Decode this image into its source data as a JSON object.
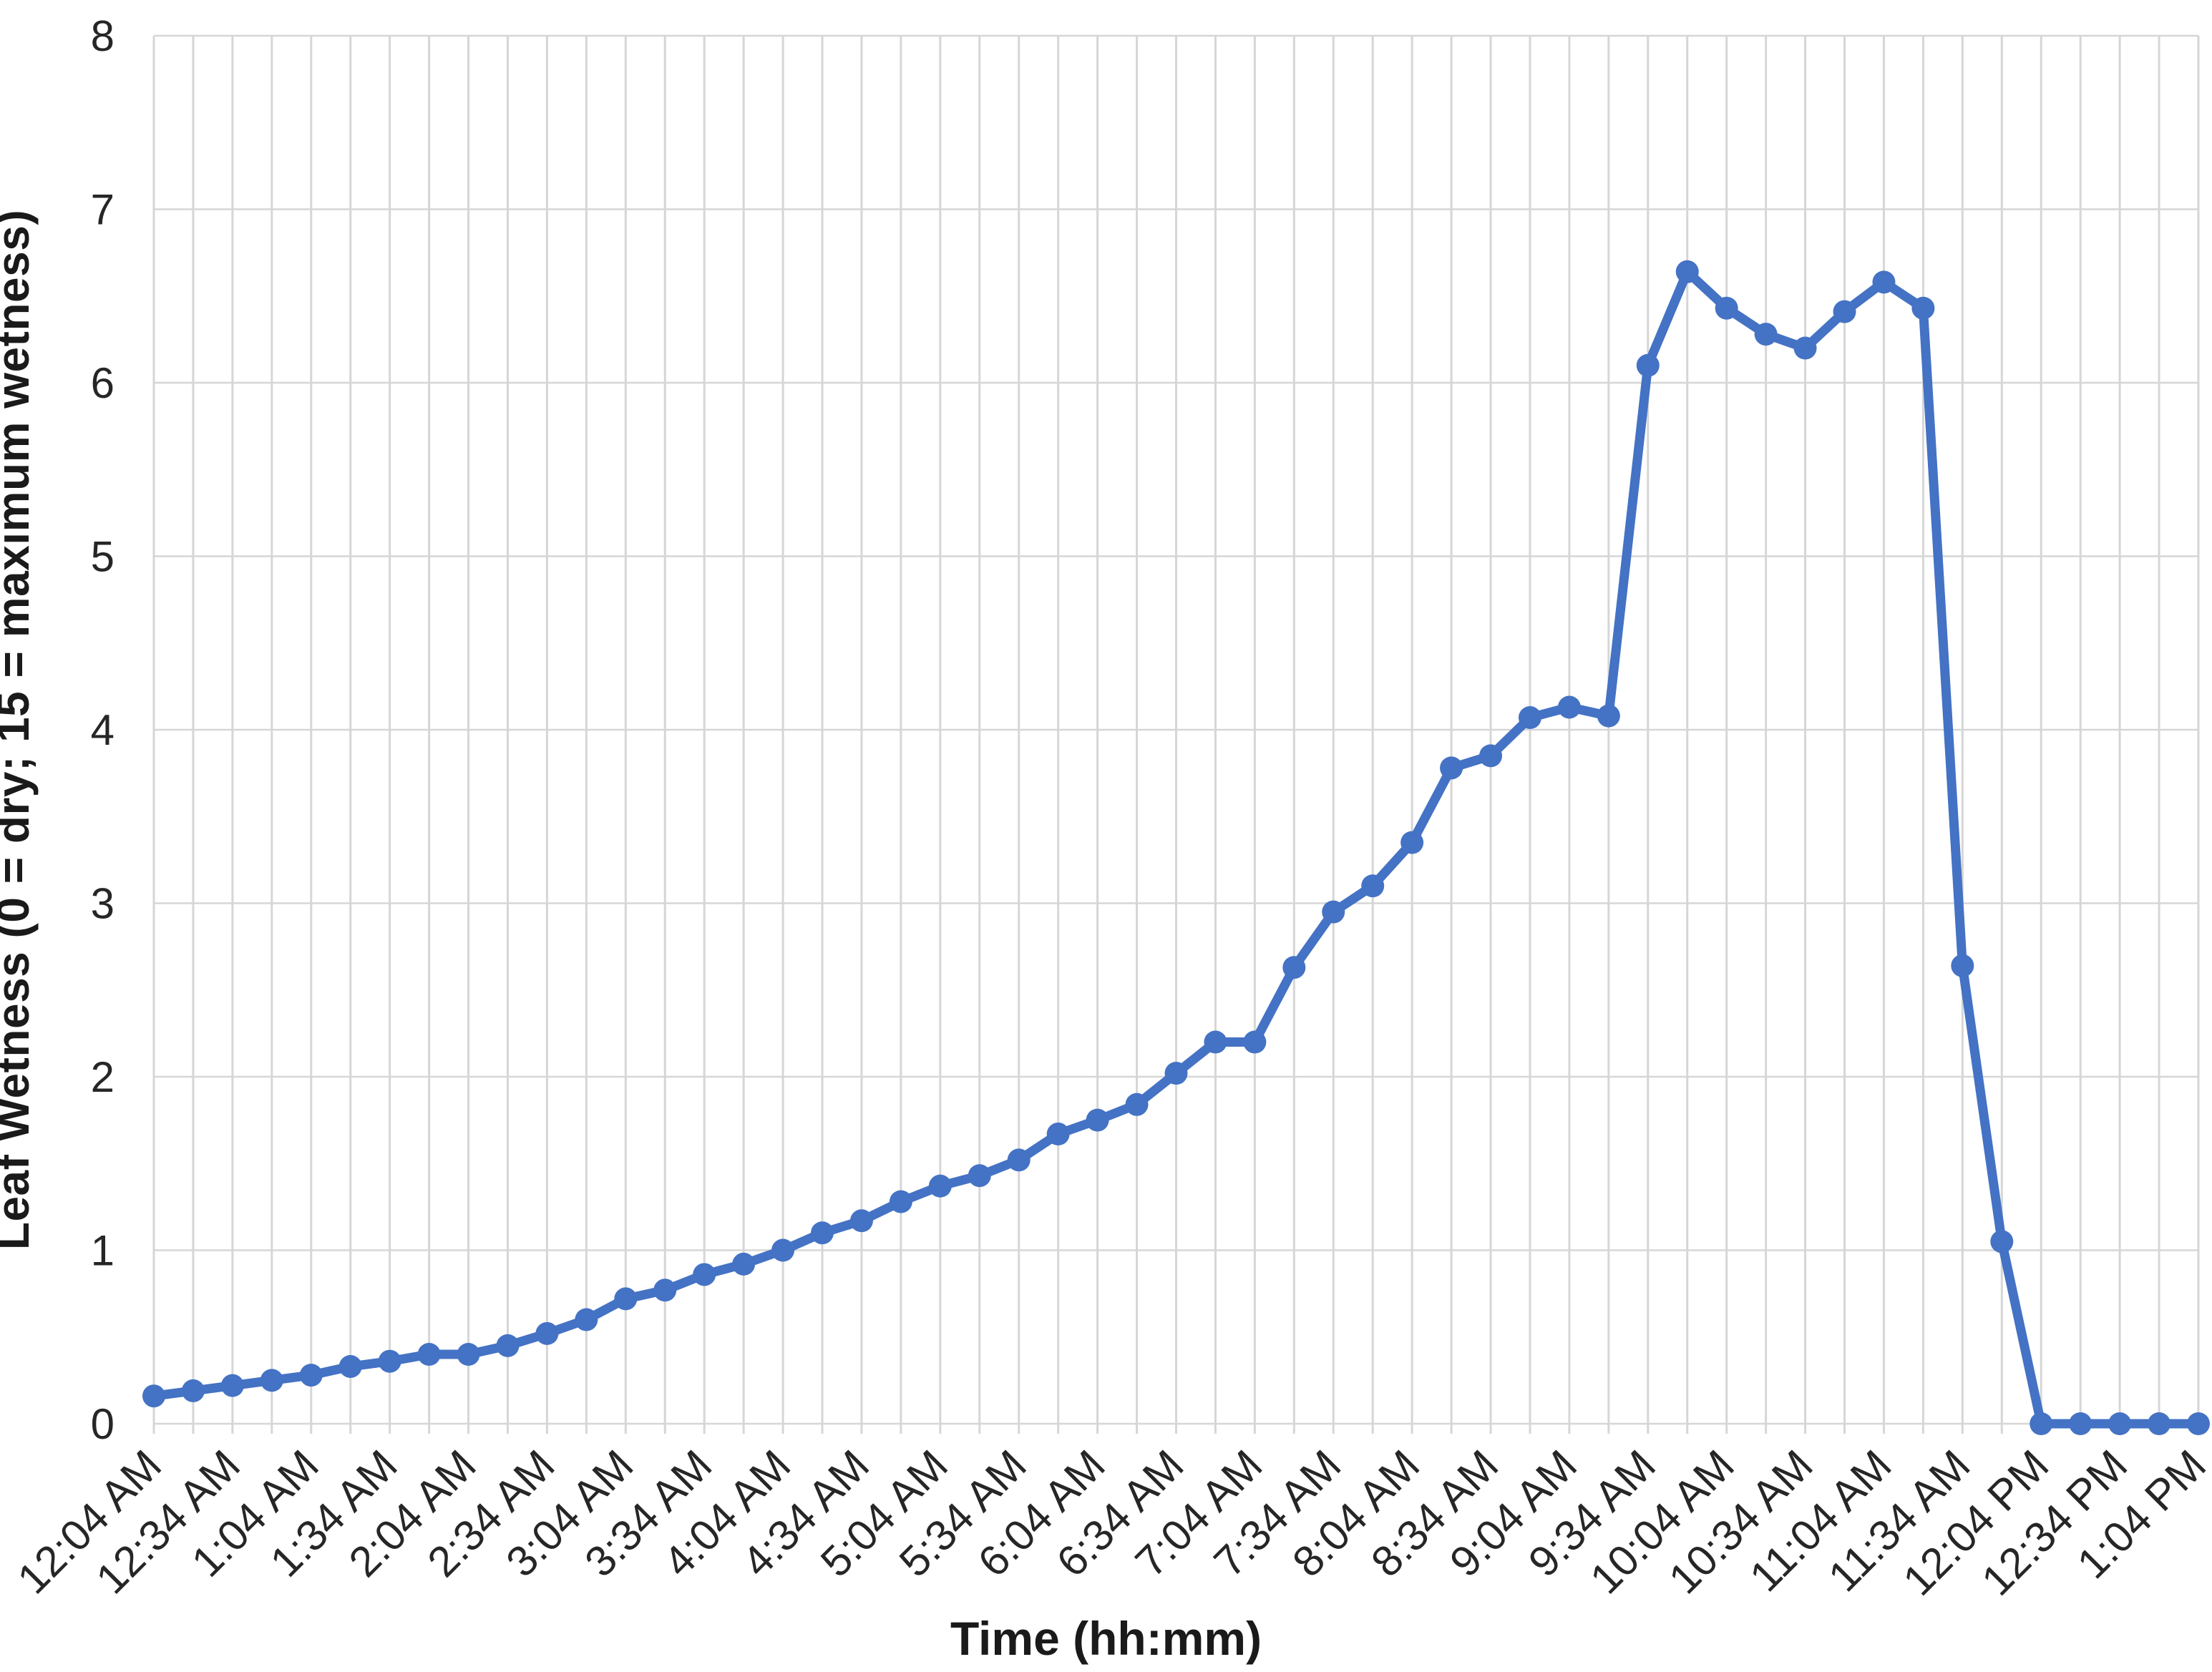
{
  "chart_data": {
    "type": "line",
    "title": "",
    "xlabel": "Time (hh:mm)",
    "ylabel": "Leaf Wetness (0 = dry; 15 = maximum wetness)",
    "ylim": [
      0,
      8
    ],
    "yticks": [
      0,
      1,
      2,
      3,
      4,
      5,
      6,
      7,
      8
    ],
    "x_tick_interval": 2,
    "grid": {
      "vertical": true,
      "horizontal": true
    },
    "legend": "none",
    "colors": {
      "line": "#4472C4",
      "marker": "#4472C4",
      "gridline": "#D6D6D6",
      "tick_text": "#262626",
      "title_text": "#1a1a1a",
      "background": "#ffffff"
    },
    "x": [
      "12:04 AM",
      "12:19 AM",
      "12:34 AM",
      "12:49 AM",
      "1:04 AM",
      "1:19 AM",
      "1:34 AM",
      "1:49 AM",
      "2:04 AM",
      "2:19 AM",
      "2:34 AM",
      "2:49 AM",
      "3:04 AM",
      "3:19 AM",
      "3:34 AM",
      "3:49 AM",
      "4:04 AM",
      "4:19 AM",
      "4:34 AM",
      "4:49 AM",
      "5:04 AM",
      "5:19 AM",
      "5:34 AM",
      "5:49 AM",
      "6:04 AM",
      "6:19 AM",
      "6:34 AM",
      "6:49 AM",
      "7:04 AM",
      "7:19 AM",
      "7:34 AM",
      "7:49 AM",
      "8:04 AM",
      "8:19 AM",
      "8:34 AM",
      "8:49 AM",
      "9:04 AM",
      "9:19 AM",
      "9:34 AM",
      "9:49 AM",
      "10:04 AM",
      "10:19 AM",
      "10:34 AM",
      "10:49 AM",
      "11:04 AM",
      "11:19 AM",
      "11:34 AM",
      "11:49 AM",
      "12:04 PM",
      "12:19 PM",
      "12:34 PM",
      "12:49 PM",
      "1:04 PM"
    ],
    "values": [
      0.16,
      0.19,
      0.22,
      0.25,
      0.28,
      0.33,
      0.36,
      0.4,
      0.4,
      0.45,
      0.52,
      0.6,
      0.72,
      0.77,
      0.86,
      0.92,
      1.0,
      1.1,
      1.17,
      1.28,
      1.37,
      1.43,
      1.52,
      1.67,
      1.75,
      1.84,
      2.02,
      2.2,
      2.2,
      2.63,
      2.95,
      3.1,
      3.35,
      3.78,
      3.85,
      4.07,
      4.13,
      4.08,
      6.1,
      6.64,
      6.43,
      6.28,
      6.2,
      6.41,
      6.58,
      6.43,
      2.64,
      1.05,
      0.0,
      0.0,
      0.0,
      0.0,
      0.0
    ]
  }
}
